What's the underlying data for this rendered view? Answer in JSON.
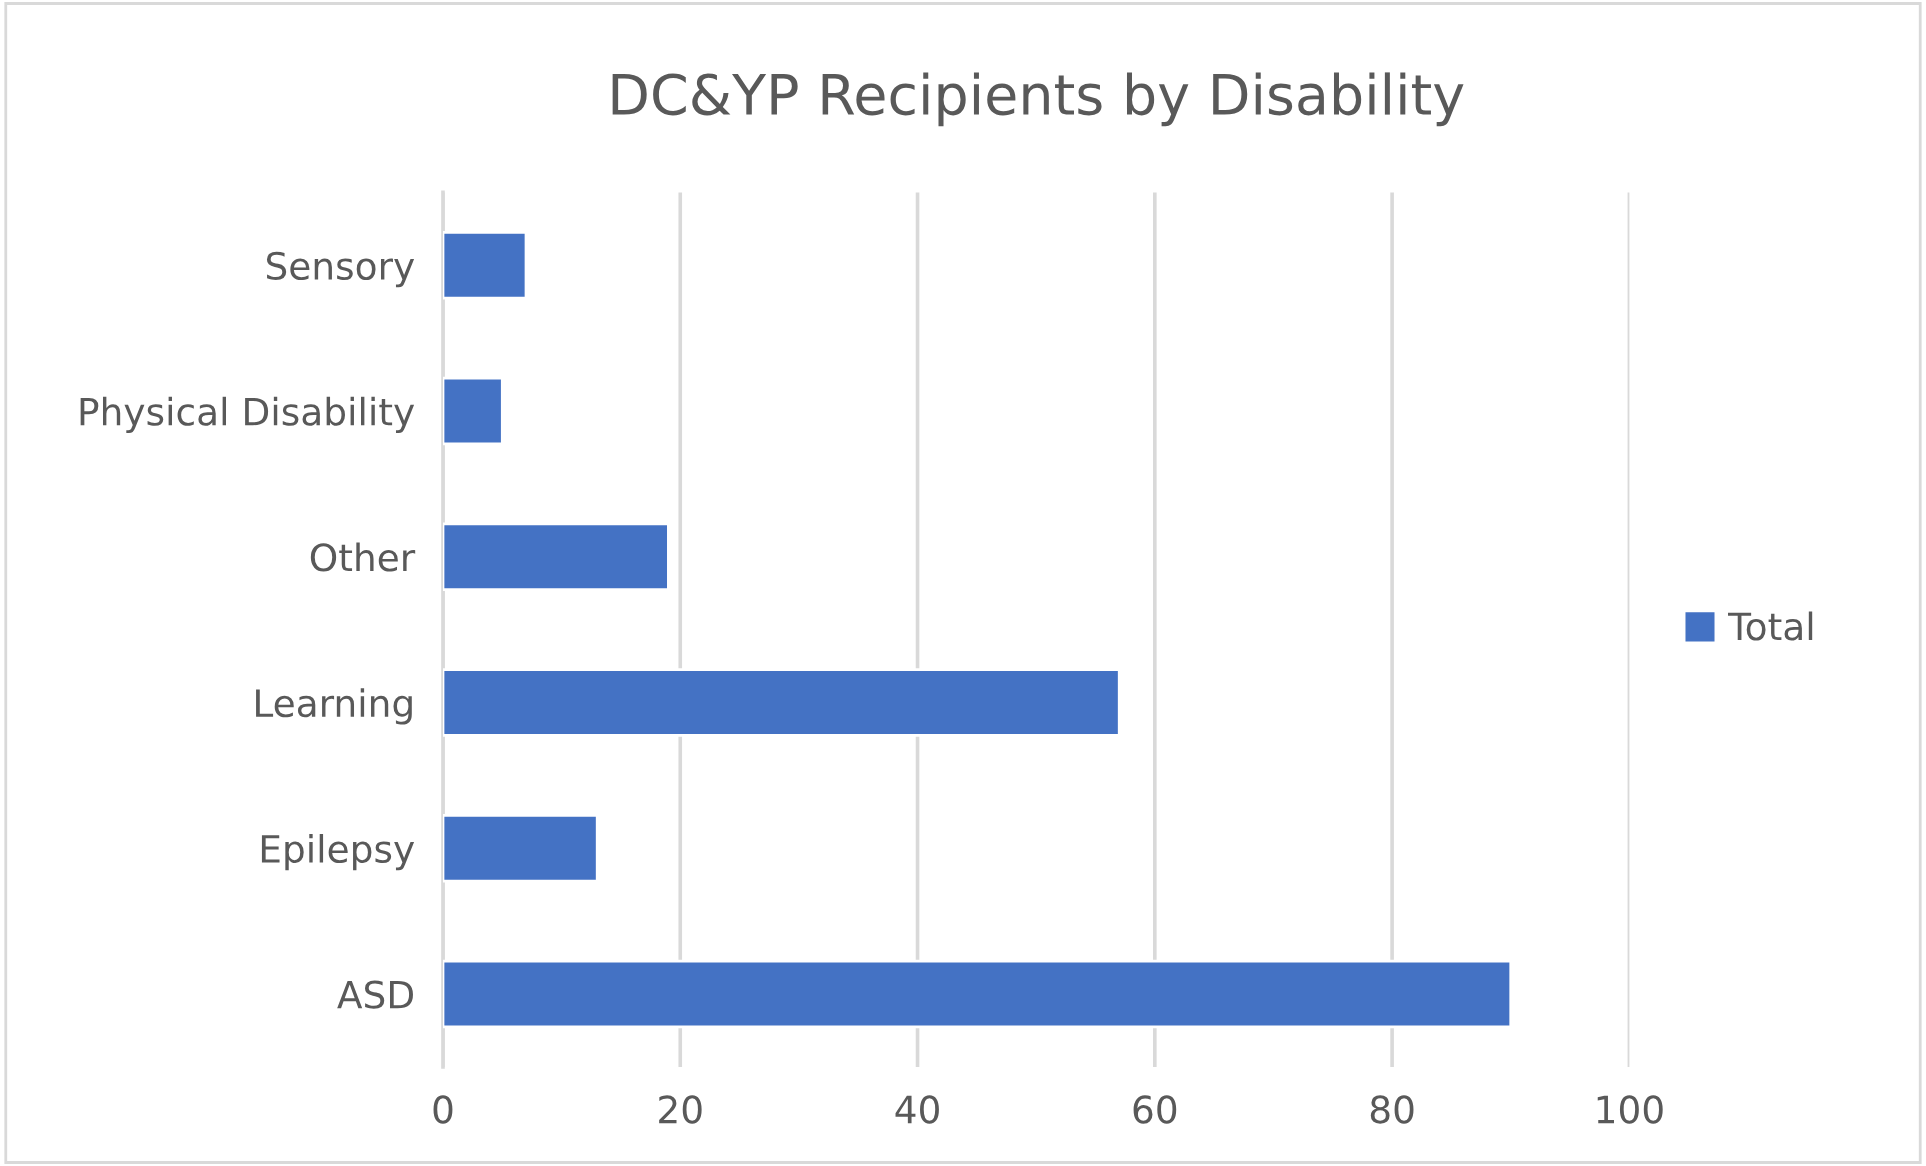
{
  "chart_data": {
    "type": "bar",
    "orientation": "horizontal",
    "title": "DC&YP Recipients by Disability",
    "categories": [
      "Sensory",
      "Physical Disability",
      "Other",
      "Learning",
      "Epilepsy",
      "ASD"
    ],
    "series": [
      {
        "name": "Total",
        "color": "#4472c4",
        "values": [
          7,
          5,
          19,
          57,
          13,
          90
        ]
      }
    ],
    "xlim": [
      0,
      100
    ],
    "xticks": [
      0,
      20,
      40,
      60,
      80,
      100
    ],
    "grid": "x",
    "legend": "right"
  }
}
